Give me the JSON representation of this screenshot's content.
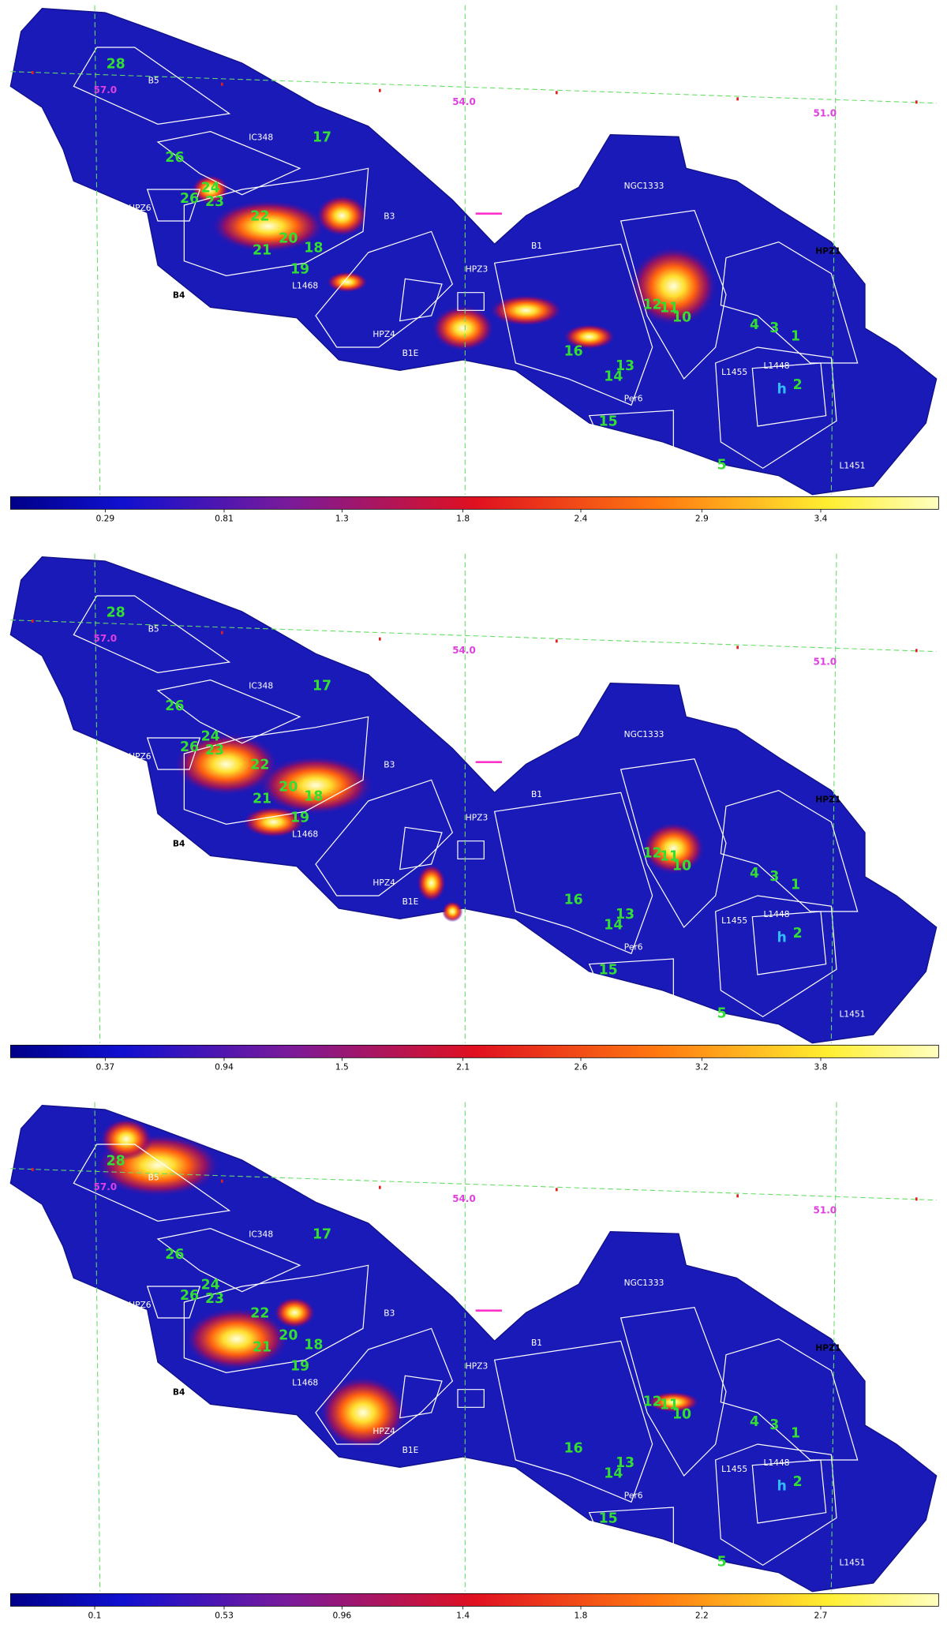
{
  "panels": [
    {
      "region_labels": [
        "B5",
        "IC348",
        "HPZ6",
        "B3",
        "B4",
        "L1468",
        "HPZ4",
        "B1E",
        "HPZ3",
        "B1",
        "NGC1333",
        "HPZ1",
        "L1455",
        "L1448",
        "Per6",
        "L1451"
      ],
      "marker_label": "h",
      "source_labels": [
        "28",
        "17",
        "26",
        "24",
        "26",
        "23",
        "22",
        "21",
        "20",
        "18",
        "19",
        "16",
        "14",
        "13",
        "15",
        "5",
        "12",
        "11",
        "10",
        "4",
        "3",
        "1",
        "2"
      ],
      "coordinate_labels": [
        "57.0",
        "54.0",
        "51.0"
      ],
      "colorbar_ticks": [
        "0.29",
        "0.81",
        "1.3",
        "1.8",
        "2.4",
        "2.9",
        "3.4"
      ]
    },
    {
      "region_labels": [
        "B5",
        "IC348",
        "HPZ6",
        "B3",
        "B4",
        "L1468",
        "HPZ4",
        "B1E",
        "HPZ3",
        "B1",
        "NGC1333",
        "HPZ1",
        "L1455",
        "L1448",
        "Per6",
        "L1451"
      ],
      "marker_label": "h",
      "source_labels": [
        "28",
        "17",
        "26",
        "24",
        "26",
        "23",
        "22",
        "21",
        "20",
        "18",
        "19",
        "16",
        "14",
        "13",
        "15",
        "5",
        "12",
        "11",
        "10",
        "4",
        "3",
        "1",
        "2"
      ],
      "coordinate_labels": [
        "57.0",
        "54.0",
        "51.0"
      ],
      "colorbar_ticks": [
        "0.37",
        "0.94",
        "1.5",
        "2.1",
        "2.6",
        "3.2",
        "3.8"
      ]
    },
    {
      "region_labels": [
        "B5",
        "IC348",
        "HPZ6",
        "B3",
        "B4",
        "L1468",
        "HPZ4",
        "B1E",
        "HPZ3",
        "B1",
        "NGC1333",
        "HPZ1",
        "L1455",
        "L1448",
        "Per6",
        "L1451"
      ],
      "marker_label": "h",
      "source_labels": [
        "28",
        "17",
        "26",
        "24",
        "26",
        "23",
        "22",
        "21",
        "20",
        "18",
        "19",
        "16",
        "14",
        "13",
        "15",
        "5",
        "12",
        "11",
        "10",
        "4",
        "3",
        "1",
        "2"
      ],
      "coordinate_labels": [
        "57.0",
        "54.0",
        "51.0"
      ],
      "colorbar_ticks": [
        "0.1",
        "0.53",
        "0.96",
        "1.4",
        "1.8",
        "2.2",
        "2.7"
      ]
    }
  ]
}
